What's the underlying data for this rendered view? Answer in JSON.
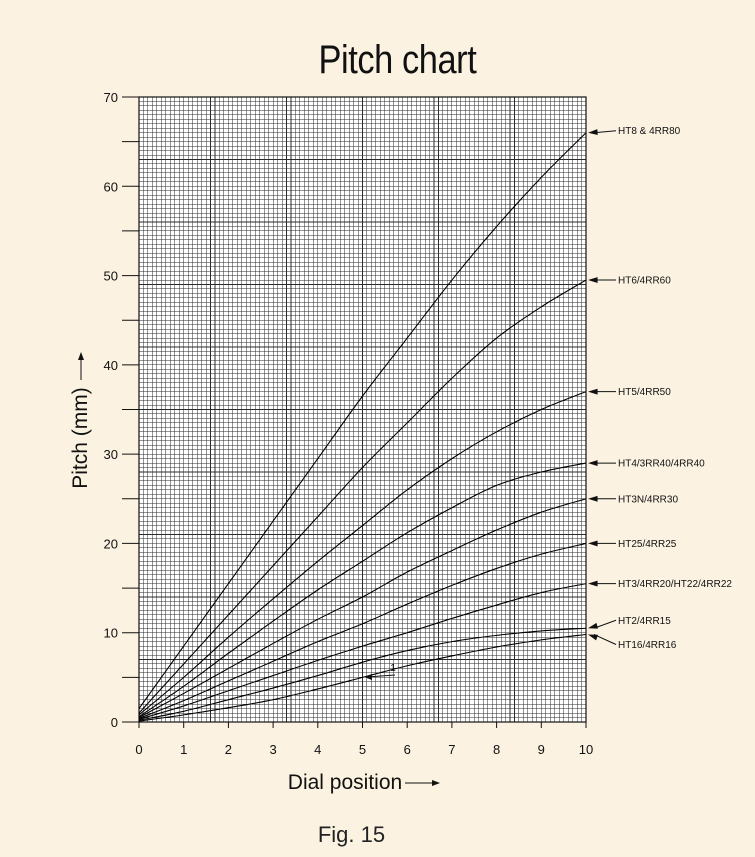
{
  "title": "Pitch chart",
  "caption": "Fig. 15",
  "chart_data": {
    "type": "line",
    "title": "Pitch chart",
    "xlabel": "Dial position",
    "ylabel": "Pitch (mm)",
    "xlim": [
      0,
      10
    ],
    "ylim": [
      0,
      70
    ],
    "x_ticks": [
      "0",
      "1",
      "2",
      "3",
      "4",
      "5",
      "6",
      "7",
      "8",
      "9",
      "10"
    ],
    "y_ticks": [
      "0",
      "10",
      "20",
      "30",
      "40",
      "50",
      "60",
      "70"
    ],
    "grid": true,
    "x": [
      0,
      1,
      2,
      3,
      4,
      5,
      6,
      7,
      8,
      9,
      10
    ],
    "series": [
      {
        "name": "HT8 & 4RR80",
        "values": [
          1.5,
          8.5,
          15.5,
          22.5,
          29.5,
          36.5,
          43,
          49.5,
          55.5,
          61,
          66
        ]
      },
      {
        "name": "HT6/4RR60",
        "values": [
          1,
          6.5,
          12,
          17.5,
          23,
          28.5,
          33.5,
          38.5,
          43,
          46.5,
          49.5
        ]
      },
      {
        "name": "HT5/4RR50",
        "values": [
          0.8,
          5,
          9.5,
          13.8,
          18,
          22,
          26,
          29.5,
          32.5,
          35,
          37
        ]
      },
      {
        "name": "HT4/3RR40/4RR40",
        "values": [
          0.6,
          4,
          7.7,
          11.3,
          14.8,
          18,
          21.2,
          24,
          26.5,
          28,
          29
        ]
      },
      {
        "name": "HT3N/4RR30",
        "values": [
          0.5,
          3.2,
          6,
          8.8,
          11.5,
          14,
          16.8,
          19.2,
          21.5,
          23.5,
          25
        ]
      },
      {
        "name": "HT25/4RR25",
        "values": [
          0.4,
          2.4,
          4.6,
          6.8,
          9,
          11,
          13.2,
          15.3,
          17.2,
          18.8,
          20
        ]
      },
      {
        "name": "HT3/4RR20/HT22/4RR22",
        "values": [
          0.3,
          1.8,
          3.5,
          5.2,
          6.9,
          8.5,
          10,
          11.6,
          13.1,
          14.5,
          15.5
        ]
      },
      {
        "name": "HT2/4RR15",
        "values": [
          0.2,
          1.2,
          2.5,
          3.8,
          5.2,
          6.7,
          8,
          9,
          9.7,
          10.2,
          10.5
        ]
      },
      {
        "name": "HT16/4RR16",
        "values": [
          0.1,
          0.8,
          1.6,
          2.5,
          3.7,
          5,
          6.3,
          7.4,
          8.4,
          9.2,
          9.8
        ]
      }
    ],
    "annotations": [
      "1"
    ]
  }
}
